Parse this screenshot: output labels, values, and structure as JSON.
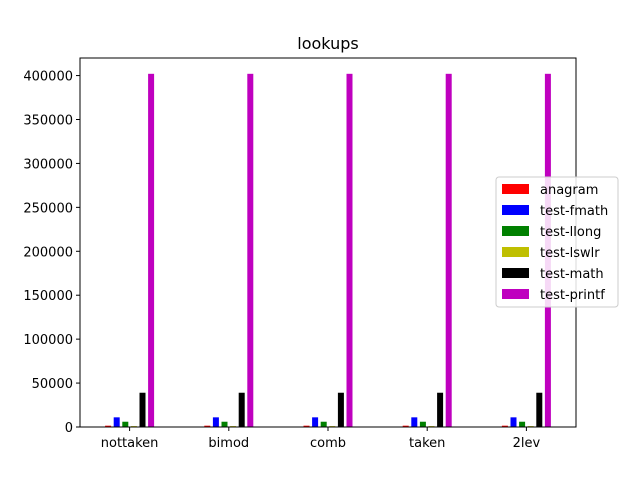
{
  "chart_data": {
    "type": "bar",
    "title": "lookups",
    "xlabel": "",
    "ylabel": "",
    "categories": [
      "nottaken",
      "bimod",
      "comb",
      "taken",
      "2lev"
    ],
    "ylim": [
      0,
      420000
    ],
    "yticks": [
      0,
      50000,
      100000,
      150000,
      200000,
      250000,
      300000,
      350000,
      400000
    ],
    "grid": false,
    "legend_position": "right",
    "series": [
      {
        "name": "anagram",
        "color": "#ff0000",
        "values": [
          1500,
          1500,
          1500,
          1500,
          1500
        ]
      },
      {
        "name": "test-fmath",
        "color": "#0000ff",
        "values": [
          11000,
          11000,
          11000,
          11000,
          11000
        ]
      },
      {
        "name": "test-llong",
        "color": "#008000",
        "values": [
          6000,
          6000,
          6000,
          6000,
          6000
        ]
      },
      {
        "name": "test-lswlr",
        "color": "#bfbf00",
        "values": [
          1000,
          1000,
          1000,
          1000,
          1000
        ]
      },
      {
        "name": "test-math",
        "color": "#000000",
        "values": [
          39000,
          39000,
          39000,
          39000,
          39000
        ]
      },
      {
        "name": "test-printf",
        "color": "#bf00bf",
        "values": [
          402000,
          402000,
          402000,
          402000,
          402000
        ]
      }
    ]
  }
}
